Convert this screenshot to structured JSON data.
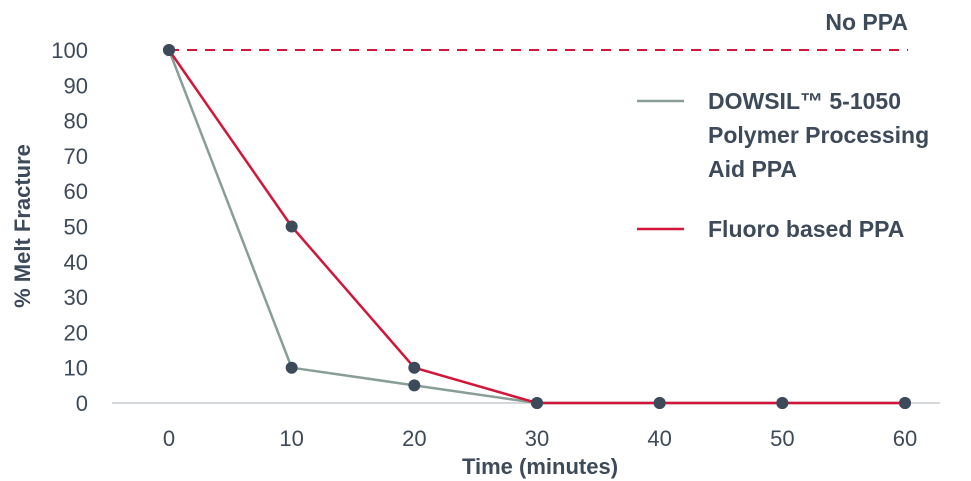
{
  "chart_data": {
    "type": "line",
    "x": [
      0,
      10,
      20,
      30,
      40,
      50,
      60
    ],
    "xlabel": "Time (minutes)",
    "ylabel": "% Melt Fracture",
    "xlim": [
      -5,
      65
    ],
    "ylim": [
      0,
      100
    ],
    "x_ticks": [
      "0",
      "10",
      "20",
      "30",
      "40",
      "50",
      "60"
    ],
    "y_ticks": [
      "100",
      "90",
      "80",
      "70",
      "60",
      "50",
      "40",
      "30",
      "20",
      "10",
      "0"
    ],
    "grid": false,
    "legend_position": "right",
    "series": [
      {
        "name": "DOWSIL™ 5-1050 Polymer Processing Aid PPA",
        "legend_lines": [
          "DOWSIL™ 5-1050",
          "Polymer Processing",
          "Aid PPA"
        ],
        "color": "#8a9e98",
        "values": [
          100,
          10,
          5,
          0,
          0,
          0,
          0
        ]
      },
      {
        "name": "Fluoro based PPA",
        "legend_lines": [
          "Fluoro based PPA"
        ],
        "color": "#d2163a",
        "values": [
          100,
          50,
          10,
          0,
          0,
          0,
          0
        ]
      }
    ],
    "reference_line": {
      "label": "No PPA",
      "value": 100,
      "style": "dashed",
      "color": "#d2163a"
    },
    "marker_color": "#3d4a5a",
    "axis_color": "#c8cdd2"
  }
}
